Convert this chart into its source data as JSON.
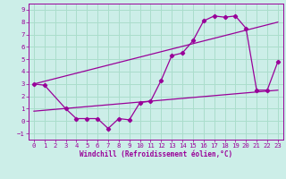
{
  "xlabel": "Windchill (Refroidissement éolien,°C)",
  "bg_color": "#cceee8",
  "grid_color": "#aaddcc",
  "line_color": "#990099",
  "xlim": [
    -0.5,
    23.5
  ],
  "ylim": [
    -1.5,
    9.5
  ],
  "xticks": [
    0,
    1,
    2,
    3,
    4,
    5,
    6,
    7,
    8,
    9,
    10,
    11,
    12,
    13,
    14,
    15,
    16,
    17,
    18,
    19,
    20,
    21,
    22,
    23
  ],
  "yticks": [
    -1,
    0,
    1,
    2,
    3,
    4,
    5,
    6,
    7,
    8,
    9
  ],
  "series": [
    {
      "x": [
        0,
        1,
        3,
        4,
        5,
        6,
        7,
        8,
        9,
        10,
        11,
        12,
        13,
        14,
        15,
        16,
        17,
        18,
        19,
        20,
        21,
        22,
        23
      ],
      "y": [
        3.0,
        2.9,
        1.0,
        0.2,
        0.2,
        0.2,
        -0.6,
        0.2,
        0.1,
        1.5,
        1.6,
        3.3,
        5.3,
        5.5,
        6.5,
        8.1,
        8.5,
        8.4,
        8.5,
        7.5,
        2.5,
        2.5,
        4.8
      ]
    },
    {
      "x": [
        0,
        23
      ],
      "y": [
        3.0,
        8.0
      ]
    },
    {
      "x": [
        0,
        23
      ],
      "y": [
        0.8,
        2.5
      ]
    }
  ]
}
